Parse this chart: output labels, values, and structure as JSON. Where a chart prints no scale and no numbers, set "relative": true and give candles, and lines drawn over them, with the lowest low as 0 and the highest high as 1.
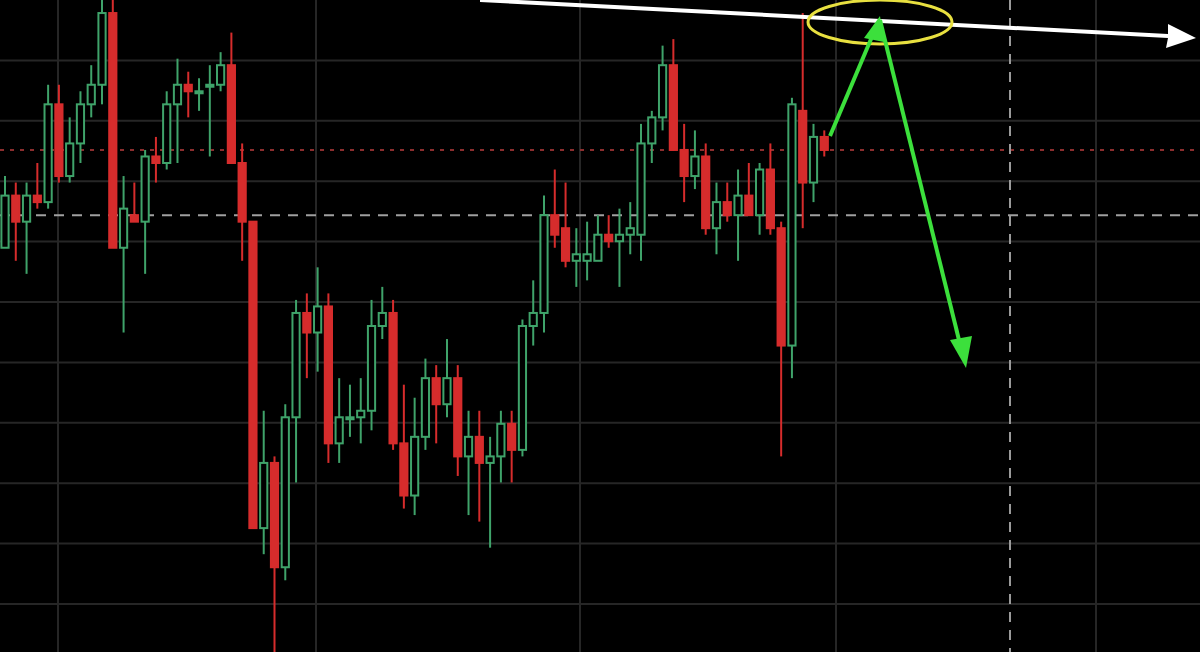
{
  "chart_data": {
    "type": "candlestick",
    "relative": true,
    "grid": true,
    "categories": [
      null,
      null,
      null,
      null,
      null,
      null,
      null,
      null,
      null,
      null,
      null,
      null,
      null,
      null,
      null,
      null,
      null,
      null,
      null,
      null,
      null,
      null,
      null,
      null,
      null,
      null,
      null,
      null,
      null,
      null,
      null,
      null,
      null,
      null,
      null,
      null,
      null,
      null,
      null,
      null,
      null,
      null,
      null,
      null,
      null,
      null,
      null,
      null,
      null,
      null,
      null,
      null,
      null,
      null,
      null,
      null,
      null,
      null,
      null,
      null,
      null,
      null,
      null,
      null,
      null,
      null,
      null,
      null,
      null,
      null,
      null,
      null,
      null,
      null,
      null,
      null,
      null
    ],
    "ohlc": [
      [
        0.62,
        0.73,
        0.62,
        0.7
      ],
      [
        0.7,
        0.72,
        0.6,
        0.66
      ],
      [
        0.66,
        0.72,
        0.58,
        0.7
      ],
      [
        0.7,
        0.75,
        0.68,
        0.69
      ],
      [
        0.69,
        0.87,
        0.68,
        0.84
      ],
      [
        0.84,
        0.87,
        0.72,
        0.73
      ],
      [
        0.73,
        0.82,
        0.72,
        0.78
      ],
      [
        0.78,
        0.86,
        0.75,
        0.84
      ],
      [
        0.84,
        0.9,
        0.82,
        0.87
      ],
      [
        0.87,
        1,
        0.84,
        0.98
      ],
      [
        0.98,
        1,
        0.62,
        0.62
      ],
      [
        0.62,
        0.73,
        0.49,
        0.68
      ],
      [
        0.67,
        0.72,
        0.66,
        0.66
      ],
      [
        0.66,
        0.77,
        0.58,
        0.76
      ],
      [
        0.76,
        0.79,
        0.72,
        0.75
      ],
      [
        0.75,
        0.86,
        0.74,
        0.84
      ],
      [
        0.84,
        0.91,
        0.75,
        0.87
      ],
      [
        0.87,
        0.89,
        0.82,
        0.86
      ],
      [
        0.86,
        0.88,
        0.83,
        0.86
      ],
      [
        0.87,
        0.9,
        0.76,
        0.87
      ],
      [
        0.87,
        0.92,
        0.86,
        0.9
      ],
      [
        0.9,
        0.95,
        0.75,
        0.75
      ],
      [
        0.75,
        0.78,
        0.6,
        0.66
      ],
      [
        0.66,
        0.66,
        0.19,
        0.19
      ],
      [
        0.19,
        0.37,
        0.15,
        0.29
      ],
      [
        0.29,
        0.3,
        0,
        0.13
      ],
      [
        0.13,
        0.38,
        0.11,
        0.36
      ],
      [
        0.36,
        0.54,
        0.26,
        0.52
      ],
      [
        0.52,
        0.55,
        0.42,
        0.49
      ],
      [
        0.49,
        0.59,
        0.43,
        0.53
      ],
      [
        0.53,
        0.55,
        0.29,
        0.32
      ],
      [
        0.32,
        0.42,
        0.29,
        0.36
      ],
      [
        0.36,
        0.41,
        0.33,
        0.36
      ],
      [
        0.36,
        0.42,
        0.32,
        0.37
      ],
      [
        0.37,
        0.54,
        0.34,
        0.5
      ],
      [
        0.5,
        0.56,
        0.48,
        0.52
      ],
      [
        0.52,
        0.54,
        0.31,
        0.32
      ],
      [
        0.32,
        0.41,
        0.22,
        0.24
      ],
      [
        0.24,
        0.39,
        0.21,
        0.33
      ],
      [
        0.33,
        0.45,
        0.31,
        0.42
      ],
      [
        0.42,
        0.44,
        0.32,
        0.38
      ],
      [
        0.38,
        0.48,
        0.36,
        0.42
      ],
      [
        0.42,
        0.44,
        0.27,
        0.3
      ],
      [
        0.3,
        0.37,
        0.21,
        0.33
      ],
      [
        0.33,
        0.37,
        0.2,
        0.29
      ],
      [
        0.29,
        0.33,
        0.16,
        0.3
      ],
      [
        0.3,
        0.37,
        0.26,
        0.35
      ],
      [
        0.35,
        0.37,
        0.26,
        0.31
      ],
      [
        0.31,
        0.51,
        0.3,
        0.5
      ],
      [
        0.5,
        0.57,
        0.47,
        0.52
      ],
      [
        0.52,
        0.7,
        0.49,
        0.67
      ],
      [
        0.67,
        0.74,
        0.62,
        0.64
      ],
      [
        0.65,
        0.72,
        0.59,
        0.6
      ],
      [
        0.6,
        0.65,
        0.56,
        0.61
      ],
      [
        0.6,
        0.66,
        0.57,
        0.61
      ],
      [
        0.6,
        0.67,
        0.6,
        0.64
      ],
      [
        0.64,
        0.67,
        0.62,
        0.63
      ],
      [
        0.63,
        0.68,
        0.56,
        0.64
      ],
      [
        0.64,
        0.69,
        0.61,
        0.65
      ],
      [
        0.64,
        0.81,
        0.6,
        0.78
      ],
      [
        0.78,
        0.83,
        0.75,
        0.82
      ],
      [
        0.82,
        0.93,
        0.8,
        0.9
      ],
      [
        0.9,
        0.94,
        0.77,
        0.77
      ],
      [
        0.77,
        0.81,
        0.69,
        0.73
      ],
      [
        0.73,
        0.8,
        0.71,
        0.76
      ],
      [
        0.76,
        0.78,
        0.64,
        0.65
      ],
      [
        0.65,
        0.72,
        0.61,
        0.69
      ],
      [
        0.69,
        0.72,
        0.66,
        0.67
      ],
      [
        0.67,
        0.74,
        0.6,
        0.7
      ],
      [
        0.7,
        0.75,
        0.67,
        0.67
      ],
      [
        0.67,
        0.75,
        0.64,
        0.74
      ],
      [
        0.74,
        0.78,
        0.64,
        0.65
      ],
      [
        0.65,
        0.66,
        0.3,
        0.47
      ],
      [
        0.47,
        0.85,
        0.42,
        0.84
      ],
      [
        0.83,
        0.98,
        0.65,
        0.72
      ],
      [
        0.72,
        0.81,
        0.69,
        0.79
      ],
      [
        0.79,
        0.8,
        0.76,
        0.77
      ]
    ],
    "colors": [
      "#3fa36a",
      "#d62c2c",
      "#3fa36a",
      "#d62c2c",
      "#3fa36a",
      "#d62c2c",
      "#3fa36a",
      "#3fa36a",
      "#3fa36a",
      "#3fa36a",
      "#d62c2c",
      "#3fa36a",
      "#d62c2c",
      "#3fa36a",
      "#d62c2c",
      "#3fa36a",
      "#3fa36a",
      "#d62c2c",
      "#3fa36a",
      "#3fa36a",
      "#3fa36a",
      "#d62c2c",
      "#d62c2c",
      "#d62c2c",
      "#3fa36a",
      "#d62c2c",
      "#3fa36a",
      "#3fa36a",
      "#d62c2c",
      "#3fa36a",
      "#d62c2c",
      "#3fa36a",
      "#3fa36a",
      "#3fa36a",
      "#3fa36a",
      "#3fa36a",
      "#d62c2c",
      "#d62c2c",
      "#3fa36a",
      "#3fa36a",
      "#d62c2c",
      "#3fa36a",
      "#d62c2c",
      "#3fa36a",
      "#d62c2c",
      "#3fa36a",
      "#3fa36a",
      "#d62c2c",
      "#3fa36a",
      "#3fa36a",
      "#3fa36a",
      "#d62c2c",
      "#d62c2c",
      "#3fa36a",
      "#3fa36a",
      "#3fa36a",
      "#d62c2c",
      "#3fa36a",
      "#3fa36a",
      "#3fa36a",
      "#3fa36a",
      "#3fa36a",
      "#d62c2c",
      "#d62c2c",
      "#3fa36a",
      "#d62c2c",
      "#3fa36a",
      "#d62c2c",
      "#3fa36a",
      "#d62c2c",
      "#3fa36a",
      "#d62c2c",
      "#d62c2c",
      "#3fa36a",
      "#d62c2c",
      "#3fa36a",
      "#d62c2c"
    ],
    "ref_lines": [
      {
        "axis": "y",
        "value": 0.77,
        "color": "#8c2e2e",
        "line_style": "dotted"
      },
      {
        "axis": "y",
        "value": 0.67,
        "color": "#a0a0a0",
        "line_style": "dashed"
      }
    ]
  }
}
